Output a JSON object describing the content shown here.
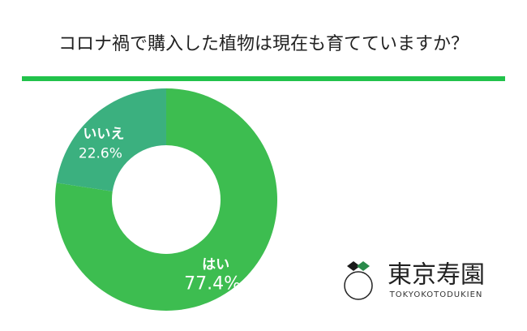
{
  "chart_data": {
    "type": "pie",
    "donut": true,
    "title": "コロナ禍で購入した植物は現在も育てていますか？",
    "categories": [
      "はい",
      "いいえ"
    ],
    "values": [
      77.4,
      22.6
    ],
    "value_labels": [
      "77.4%",
      "22.6%"
    ],
    "colors": [
      "#3dbd50",
      "#3bb07f"
    ]
  },
  "logo": {
    "name": "東京寿園",
    "subtitle": "TOKYOKOTODUKIEN"
  }
}
